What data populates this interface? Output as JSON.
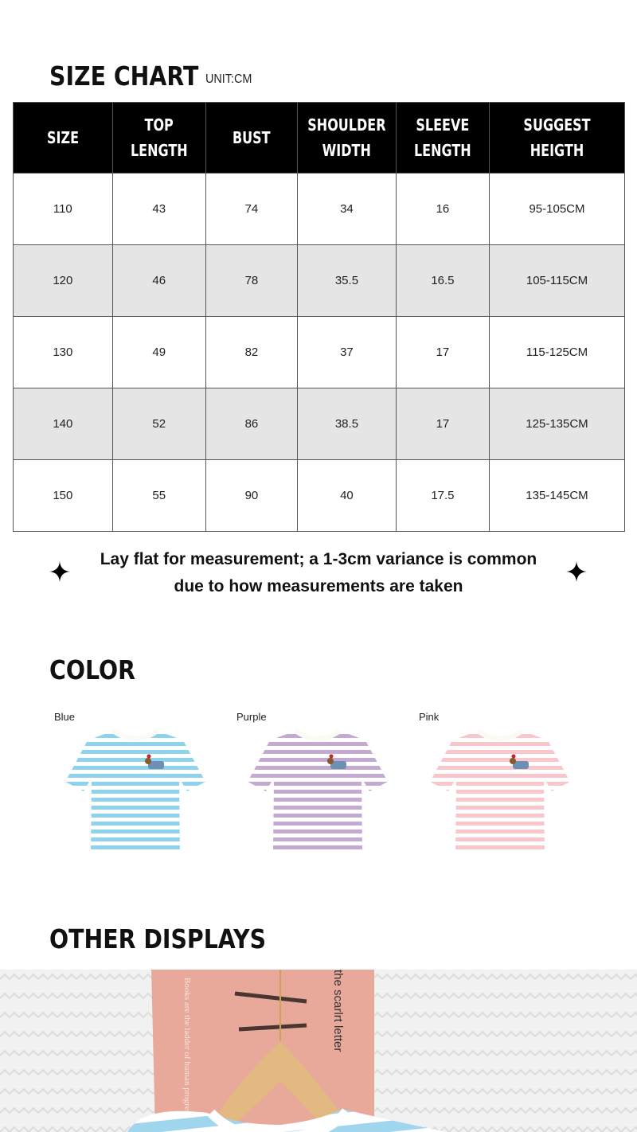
{
  "size_chart": {
    "title": "SIZE CHART",
    "unit": "UNIT:CM",
    "headers": [
      [
        "SIZE"
      ],
      [
        "TOP",
        "LENGTH"
      ],
      [
        "BUST"
      ],
      [
        "SHOULDER",
        "WIDTH"
      ],
      [
        "SLEEVE",
        "LENGTH"
      ],
      [
        "SUGGEST HEIGTH"
      ]
    ],
    "rows": [
      [
        "110",
        "43",
        "74",
        "34",
        "16",
        "95-105CM"
      ],
      [
        "120",
        "46",
        "78",
        "35.5",
        "16.5",
        "105-115CM"
      ],
      [
        "130",
        "49",
        "82",
        "37",
        "17",
        "115-125CM"
      ],
      [
        "140",
        "52",
        "86",
        "38.5",
        "17",
        "125-135CM"
      ],
      [
        "150",
        "55",
        "90",
        "40",
        "17.5",
        "135-145CM"
      ]
    ],
    "note_line1": "Lay flat for measurement; a 1-3cm variance is common",
    "note_line2": "due to how measurements are taken",
    "icon": "sparkle-star-icon"
  },
  "color": {
    "title": "COLOR",
    "items": [
      {
        "label": "Blue",
        "stripe": "#8ed3ec"
      },
      {
        "label": "Purple",
        "stripe": "#c4a9d3"
      },
      {
        "label": "Pink",
        "stripe": "#f7c7cc"
      }
    ]
  },
  "other": {
    "title": "OTHER DISPLAYS",
    "book_text1": "Books are the ladder of human progress",
    "book_text2": "the scarlrt letter"
  }
}
